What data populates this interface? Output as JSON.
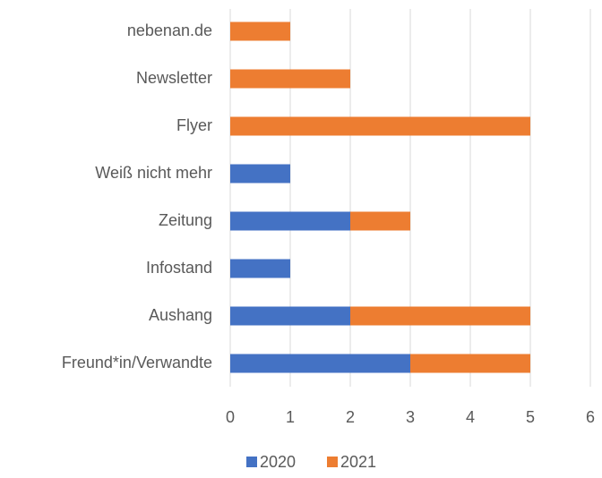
{
  "chart_data": {
    "type": "bar",
    "orientation": "horizontal",
    "stacked": true,
    "categories": [
      "nebenan.de",
      "Newsletter",
      "Flyer",
      "Weiß nicht mehr",
      "Zeitung",
      "Infostand",
      "Aushang",
      "Freund*in/Verwandte"
    ],
    "series": [
      {
        "name": "2020",
        "color": "#4472c4",
        "values": [
          0,
          0,
          0,
          1,
          2,
          1,
          2,
          3
        ]
      },
      {
        "name": "2021",
        "color": "#ed7d31",
        "values": [
          1,
          2,
          5,
          0,
          1,
          0,
          3,
          2
        ]
      }
    ],
    "xlim": [
      0,
      6
    ],
    "xticks": [
      0,
      1,
      2,
      3,
      4,
      5,
      6
    ],
    "grid": true,
    "legend": "bottom"
  }
}
